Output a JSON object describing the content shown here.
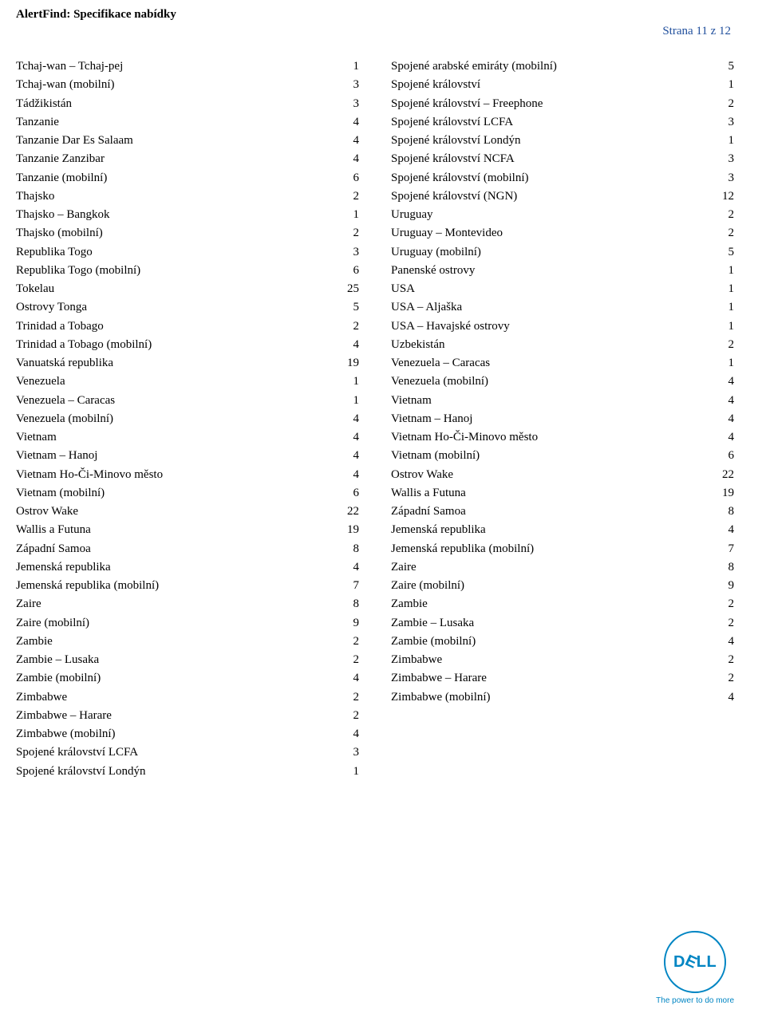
{
  "header": {
    "title": "AlertFind: Specifikace nabídky",
    "page_indicator": "Strana 11 z 12"
  },
  "leftColumn": [
    {
      "name": "Tchaj-wan – Tchaj-pej",
      "value": "1"
    },
    {
      "name": "Tchaj-wan (mobilní)",
      "value": "3"
    },
    {
      "name": "Tádžikistán",
      "value": "3"
    },
    {
      "name": "Tanzanie",
      "value": "4"
    },
    {
      "name": "Tanzanie Dar Es Salaam",
      "value": "4"
    },
    {
      "name": "Tanzanie Zanzibar",
      "value": "4"
    },
    {
      "name": "Tanzanie (mobilní)",
      "value": "6"
    },
    {
      "name": "Thajsko",
      "value": "2"
    },
    {
      "name": "Thajsko – Bangkok",
      "value": "1"
    },
    {
      "name": "Thajsko (mobilní)",
      "value": "2"
    },
    {
      "name": "Republika Togo",
      "value": "3"
    },
    {
      "name": "Republika Togo (mobilní)",
      "value": "6"
    },
    {
      "name": "Tokelau",
      "value": "25"
    },
    {
      "name": "Ostrovy Tonga",
      "value": "5"
    },
    {
      "name": "Trinidad a Tobago",
      "value": "2"
    },
    {
      "name": "Trinidad a Tobago (mobilní)",
      "value": "4"
    },
    {
      "name": "Vanuatská republika",
      "value": "19"
    },
    {
      "name": "Venezuela",
      "value": "1"
    },
    {
      "name": "Venezuela – Caracas",
      "value": "1"
    },
    {
      "name": "Venezuela (mobilní)",
      "value": "4"
    },
    {
      "name": "Vietnam",
      "value": "4"
    },
    {
      "name": "Vietnam – Hanoj",
      "value": "4"
    },
    {
      "name": "Vietnam Ho-Či-Minovo město",
      "value": "4"
    },
    {
      "name": "Vietnam (mobilní)",
      "value": "6"
    },
    {
      "name": "Ostrov Wake",
      "value": "22"
    },
    {
      "name": "Wallis a Futuna",
      "value": "19"
    },
    {
      "name": "Západní Samoa",
      "value": "8"
    },
    {
      "name": "Jemenská republika",
      "value": "4"
    },
    {
      "name": "Jemenská republika (mobilní)",
      "value": "7"
    },
    {
      "name": "Zaire",
      "value": "8"
    },
    {
      "name": "Zaire (mobilní)",
      "value": "9"
    },
    {
      "name": "Zambie",
      "value": "2"
    },
    {
      "name": "Zambie – Lusaka",
      "value": "2"
    },
    {
      "name": "Zambie (mobilní)",
      "value": "4"
    },
    {
      "name": "Zimbabwe",
      "value": "2"
    },
    {
      "name": "Zimbabwe – Harare",
      "value": "2"
    },
    {
      "name": "Zimbabwe (mobilní)",
      "value": "4"
    },
    {
      "name": "Spojené království LCFA",
      "value": "3"
    },
    {
      "name": "Spojené království Londýn",
      "value": "1"
    }
  ],
  "rightColumn": [
    {
      "name": "Spojené arabské emiráty (mobilní)",
      "value": "5"
    },
    {
      "name": "Spojené království",
      "value": "1"
    },
    {
      "name": "Spojené království – Freephone",
      "value": "2"
    },
    {
      "name": "Spojené království LCFA",
      "value": "3"
    },
    {
      "name": "Spojené království Londýn",
      "value": "1"
    },
    {
      "name": "Spojené království NCFA",
      "value": "3"
    },
    {
      "name": "Spojené království (mobilní)",
      "value": "3"
    },
    {
      "name": "Spojené království (NGN)",
      "value": "12"
    },
    {
      "name": "Uruguay",
      "value": "2"
    },
    {
      "name": "Uruguay – Montevideo",
      "value": "2"
    },
    {
      "name": "Uruguay (mobilní)",
      "value": "5"
    },
    {
      "name": "Panenské ostrovy",
      "value": "1"
    },
    {
      "name": "USA",
      "value": "1"
    },
    {
      "name": "USA – Aljaška",
      "value": "1"
    },
    {
      "name": "USA – Havajské ostrovy",
      "value": "1"
    },
    {
      "name": "Uzbekistán",
      "value": "2"
    },
    {
      "name": "Venezuela – Caracas",
      "value": "1"
    },
    {
      "name": "Venezuela (mobilní)",
      "value": "4"
    },
    {
      "name": "Vietnam",
      "value": "4"
    },
    {
      "name": "Vietnam – Hanoj",
      "value": "4"
    },
    {
      "name": "Vietnam Ho-Či-Minovo město",
      "value": "4"
    },
    {
      "name": "Vietnam (mobilní)",
      "value": "6"
    },
    {
      "name": "Ostrov Wake",
      "value": "22"
    },
    {
      "name": "Wallis a Futuna",
      "value": "19"
    },
    {
      "name": "Západní Samoa",
      "value": "8"
    },
    {
      "name": "Jemenská republika",
      "value": "4"
    },
    {
      "name": "Jemenská republika (mobilní)",
      "value": "7"
    },
    {
      "name": "Zaire",
      "value": "8"
    },
    {
      "name": "Zaire (mobilní)",
      "value": "9"
    },
    {
      "name": "Zambie",
      "value": "2"
    },
    {
      "name": "Zambie – Lusaka",
      "value": "2"
    },
    {
      "name": "Zambie (mobilní)",
      "value": "4"
    },
    {
      "name": "Zimbabwe",
      "value": "2"
    },
    {
      "name": "Zimbabwe – Harare",
      "value": "2"
    },
    {
      "name": "Zimbabwe (mobilní)",
      "value": "4"
    }
  ],
  "logo": {
    "brand_letters": {
      "d": "D",
      "e": "E",
      "l1": "L",
      "l2": "L"
    },
    "tagline": "The power to do more",
    "brand_color": "#0085c3"
  }
}
